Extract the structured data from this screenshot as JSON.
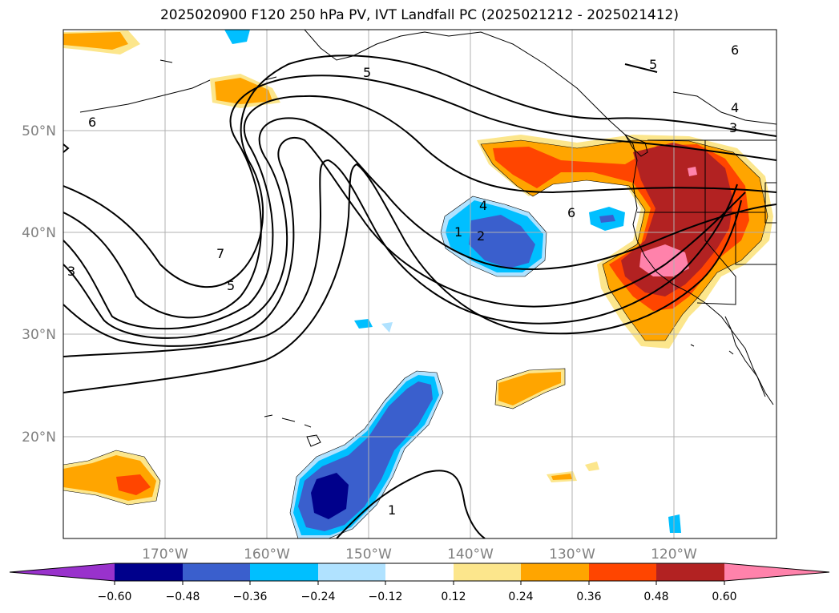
{
  "title": "2025020900 F120 250 hPa PV, IVT Landfall PC (2025021212 - 2025021412)",
  "map": {
    "lon_labels": [
      "170°W",
      "160°W",
      "150°W",
      "140°W",
      "130°W",
      "120°W"
    ],
    "lat_labels": [
      "50°N",
      "40°N",
      "30°N",
      "20°N"
    ],
    "contour_labels": [
      "5",
      "6",
      "4",
      "3",
      "5",
      "6",
      "6",
      "7",
      "5",
      "3",
      "1",
      "2",
      "4",
      "1"
    ]
  },
  "colorbar": {
    "tick_labels": [
      "−0.60",
      "−0.48",
      "−0.36",
      "−0.24",
      "−0.12",
      "0.12",
      "0.24",
      "0.36",
      "0.48",
      "0.60"
    ],
    "colors": [
      "#9932cc",
      "#00008b",
      "#3a5fcd",
      "#00bfff",
      "#b0e2ff",
      "#ffffff",
      "#fce68c",
      "#ffa500",
      "#ff4500",
      "#b22222",
      "#ff82ab"
    ]
  }
}
